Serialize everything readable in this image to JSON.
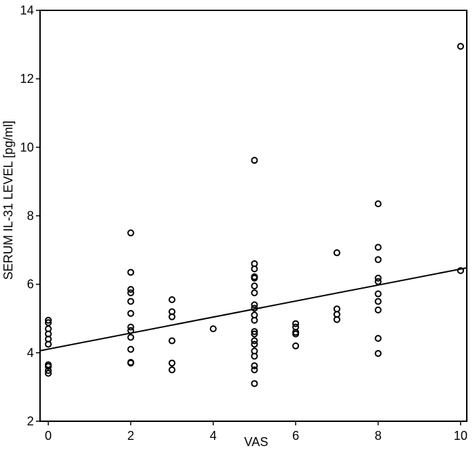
{
  "chart_data": {
    "type": "scatter",
    "xlabel": "VAS",
    "ylabel": "SERUM IL-31 LEVEL [pg/ml]",
    "xlim": [
      -0.2,
      10.15
    ],
    "ylim": [
      2,
      14
    ],
    "xticks": [
      0,
      2,
      4,
      6,
      8,
      10
    ],
    "yticks": [
      2,
      4,
      6,
      8,
      10,
      12,
      14
    ],
    "grid": false,
    "marker": "open-circle",
    "colors": {
      "axis": "#000000",
      "marker": "#000000",
      "line": "#000000"
    },
    "points": [
      {
        "x": 0,
        "y": 4.95
      },
      {
        "x": 0,
        "y": 4.88
      },
      {
        "x": 0,
        "y": 4.7
      },
      {
        "x": 0,
        "y": 4.55
      },
      {
        "x": 0,
        "y": 4.4
      },
      {
        "x": 0,
        "y": 4.25
      },
      {
        "x": 0,
        "y": 3.65
      },
      {
        "x": 0,
        "y": 3.6
      },
      {
        "x": 0,
        "y": 3.48
      },
      {
        "x": 0,
        "y": 3.4
      },
      {
        "x": 2,
        "y": 7.5
      },
      {
        "x": 2,
        "y": 6.35
      },
      {
        "x": 2,
        "y": 5.85
      },
      {
        "x": 2,
        "y": 5.75
      },
      {
        "x": 2,
        "y": 5.5
      },
      {
        "x": 2,
        "y": 5.15
      },
      {
        "x": 2,
        "y": 4.75
      },
      {
        "x": 2,
        "y": 4.65
      },
      {
        "x": 2,
        "y": 4.45
      },
      {
        "x": 2,
        "y": 4.1
      },
      {
        "x": 2,
        "y": 3.72
      },
      {
        "x": 2,
        "y": 3.7
      },
      {
        "x": 3,
        "y": 5.55
      },
      {
        "x": 3,
        "y": 5.2
      },
      {
        "x": 3,
        "y": 5.05
      },
      {
        "x": 3,
        "y": 4.35
      },
      {
        "x": 3,
        "y": 3.7
      },
      {
        "x": 3,
        "y": 3.5
      },
      {
        "x": 4,
        "y": 4.7
      },
      {
        "x": 5,
        "y": 9.62
      },
      {
        "x": 5,
        "y": 6.6
      },
      {
        "x": 5,
        "y": 6.45
      },
      {
        "x": 5,
        "y": 6.22
      },
      {
        "x": 5,
        "y": 6.18
      },
      {
        "x": 5,
        "y": 5.95
      },
      {
        "x": 5,
        "y": 5.75
      },
      {
        "x": 5,
        "y": 5.4
      },
      {
        "x": 5,
        "y": 5.3
      },
      {
        "x": 5,
        "y": 5.1
      },
      {
        "x": 5,
        "y": 4.95
      },
      {
        "x": 5,
        "y": 4.62
      },
      {
        "x": 5,
        "y": 4.55
      },
      {
        "x": 5,
        "y": 4.35
      },
      {
        "x": 5,
        "y": 4.25
      },
      {
        "x": 5,
        "y": 4.05
      },
      {
        "x": 5,
        "y": 3.9
      },
      {
        "x": 5,
        "y": 3.62
      },
      {
        "x": 5,
        "y": 3.5
      },
      {
        "x": 5,
        "y": 3.1
      },
      {
        "x": 6,
        "y": 4.85
      },
      {
        "x": 6,
        "y": 4.75
      },
      {
        "x": 6,
        "y": 4.6
      },
      {
        "x": 6,
        "y": 4.55
      },
      {
        "x": 6,
        "y": 4.2
      },
      {
        "x": 7,
        "y": 6.92
      },
      {
        "x": 7,
        "y": 5.28
      },
      {
        "x": 7,
        "y": 5.12
      },
      {
        "x": 7,
        "y": 4.97
      },
      {
        "x": 8,
        "y": 8.35
      },
      {
        "x": 8,
        "y": 7.08
      },
      {
        "x": 8,
        "y": 6.72
      },
      {
        "x": 8,
        "y": 6.18
      },
      {
        "x": 8,
        "y": 6.08
      },
      {
        "x": 8,
        "y": 5.72
      },
      {
        "x": 8,
        "y": 5.5
      },
      {
        "x": 8,
        "y": 5.25
      },
      {
        "x": 8,
        "y": 4.42
      },
      {
        "x": 8,
        "y": 3.98
      },
      {
        "x": 10,
        "y": 12.95
      },
      {
        "x": 10,
        "y": 6.4
      }
    ],
    "regression_line": {
      "x": [
        -0.2,
        10.15
      ],
      "y": [
        4.06,
        6.48
      ]
    }
  }
}
